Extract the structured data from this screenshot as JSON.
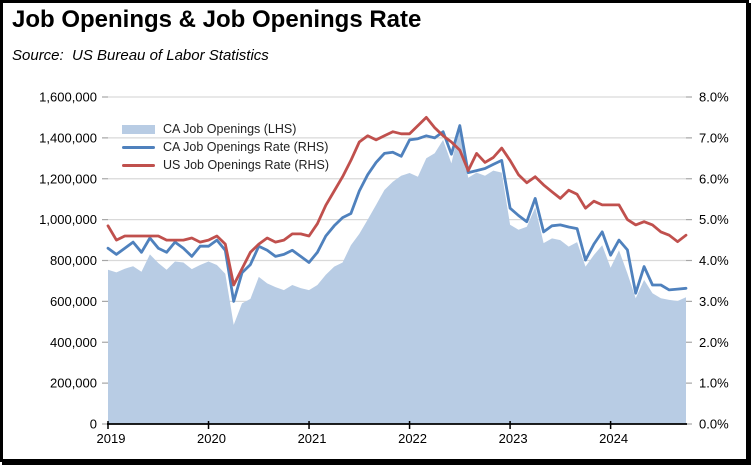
{
  "header": {
    "title": "Job Openings & Job Openings Rate",
    "source_line": "Source:  US Bureau of Labor Statistics"
  },
  "colors": {
    "area_fill": "#b8cce4",
    "ca_rate_line": "#4f81bd",
    "us_rate_line": "#c0504d",
    "gridline": "#d9d9d9",
    "tick_mark": "#a6a6a6",
    "axis_line": "#000000",
    "text": "#000000"
  },
  "chart_data": {
    "type": "area",
    "subtype": "area-with-two-lines",
    "grid": true,
    "legend_position": "top-left-inside",
    "months": [
      "2019-01",
      "2019-02",
      "2019-03",
      "2019-04",
      "2019-05",
      "2019-06",
      "2019-07",
      "2019-08",
      "2019-09",
      "2019-10",
      "2019-11",
      "2019-12",
      "2020-01",
      "2020-02",
      "2020-03",
      "2020-04",
      "2020-05",
      "2020-06",
      "2020-07",
      "2020-08",
      "2020-09",
      "2020-10",
      "2020-11",
      "2020-12",
      "2021-01",
      "2021-02",
      "2021-03",
      "2021-04",
      "2021-05",
      "2021-06",
      "2021-07",
      "2021-08",
      "2021-09",
      "2021-10",
      "2021-11",
      "2021-12",
      "2022-01",
      "2022-02",
      "2022-03",
      "2022-04",
      "2022-05",
      "2022-06",
      "2022-07",
      "2022-08",
      "2022-09",
      "2022-10",
      "2022-11",
      "2022-12",
      "2023-01",
      "2023-02",
      "2023-03",
      "2023-04",
      "2023-05",
      "2023-06",
      "2023-07",
      "2023-08",
      "2023-09",
      "2023-10",
      "2023-11",
      "2023-12",
      "2024-01",
      "2024-02",
      "2024-03",
      "2024-04",
      "2024-05",
      "2024-06",
      "2024-07",
      "2024-08",
      "2024-09",
      "2024-10"
    ],
    "x_tick_labels": [
      "2019",
      "2020",
      "2021",
      "2022",
      "2023",
      "2024"
    ],
    "x_tick_month_index": [
      0,
      12,
      24,
      36,
      48,
      60
    ],
    "left_axis": {
      "min": 0,
      "max": 1600000,
      "tick_values": [
        0,
        200000,
        400000,
        600000,
        800000,
        1000000,
        1200000,
        1400000,
        1600000
      ],
      "tick_labels": [
        "0",
        "200,000",
        "400,000",
        "600,000",
        "800,000",
        "1,000,000",
        "1,200,000",
        "1,400,000",
        "1,600,000"
      ]
    },
    "right_axis": {
      "min": 0,
      "max": 8,
      "tick_values": [
        0,
        1,
        2,
        3,
        4,
        5,
        6,
        7,
        8
      ],
      "tick_labels": [
        "0.0%",
        "1.0%",
        "2.0%",
        "3.0%",
        "4.0%",
        "5.0%",
        "6.0%",
        "7.0%",
        "8.0%"
      ]
    },
    "series": [
      {
        "name": "CA Job Openings (LHS)",
        "type": "area",
        "axis": "left",
        "color": "#b8cce4",
        "values": [
          755000,
          742000,
          760000,
          772000,
          745000,
          830000,
          788000,
          755000,
          795000,
          790000,
          758000,
          778000,
          795000,
          778000,
          735000,
          485000,
          590000,
          612000,
          720000,
          688000,
          670000,
          655000,
          680000,
          665000,
          655000,
          680000,
          730000,
          770000,
          790000,
          875000,
          930000,
          1000000,
          1072000,
          1145000,
          1185000,
          1215000,
          1228000,
          1210000,
          1300000,
          1325000,
          1390000,
          1275000,
          1455000,
          1205000,
          1230000,
          1215000,
          1240000,
          1230000,
          975000,
          950000,
          965000,
          1060000,
          885000,
          908000,
          900000,
          868000,
          890000,
          770000,
          827000,
          875000,
          765000,
          850000,
          737000,
          615000,
          705000,
          640000,
          615000,
          607000,
          602000,
          620000
        ]
      },
      {
        "name": "CA Job Openings Rate (RHS)",
        "type": "line",
        "axis": "right",
        "color": "#4f81bd",
        "values": [
          4.3,
          4.15,
          4.3,
          4.45,
          4.2,
          4.55,
          4.3,
          4.2,
          4.45,
          4.3,
          4.1,
          4.35,
          4.35,
          4.5,
          4.25,
          3.0,
          3.7,
          3.9,
          4.35,
          4.25,
          4.1,
          4.15,
          4.25,
          4.1,
          3.95,
          4.2,
          4.6,
          4.85,
          5.05,
          5.15,
          5.7,
          6.1,
          6.4,
          6.62,
          6.65,
          6.55,
          6.95,
          6.98,
          7.05,
          7.0,
          7.15,
          6.6,
          7.3,
          6.15,
          6.2,
          6.25,
          6.35,
          6.45,
          5.28,
          5.1,
          4.95,
          5.52,
          4.7,
          4.85,
          4.87,
          4.82,
          4.78,
          4.01,
          4.4,
          4.7,
          4.13,
          4.5,
          4.26,
          3.2,
          3.85,
          3.4,
          3.4,
          3.28,
          3.3,
          3.32
        ]
      },
      {
        "name": "US Job Openings Rate (RHS)",
        "type": "line",
        "axis": "right",
        "color": "#c0504d",
        "values": [
          4.85,
          4.5,
          4.6,
          4.6,
          4.6,
          4.6,
          4.6,
          4.5,
          4.5,
          4.5,
          4.55,
          4.45,
          4.5,
          4.6,
          4.4,
          3.4,
          3.8,
          4.2,
          4.4,
          4.55,
          4.45,
          4.5,
          4.65,
          4.65,
          4.6,
          4.9,
          5.35,
          5.7,
          6.05,
          6.45,
          6.9,
          7.05,
          6.95,
          7.05,
          7.15,
          7.1,
          7.1,
          7.3,
          7.5,
          7.25,
          7.05,
          6.9,
          6.7,
          6.2,
          6.62,
          6.4,
          6.52,
          6.75,
          6.45,
          6.1,
          5.9,
          6.05,
          5.85,
          5.68,
          5.52,
          5.72,
          5.62,
          5.28,
          5.45,
          5.36,
          5.36,
          5.36,
          5.0,
          4.87,
          4.95,
          4.87,
          4.7,
          4.62,
          4.46,
          4.62
        ]
      }
    ]
  }
}
